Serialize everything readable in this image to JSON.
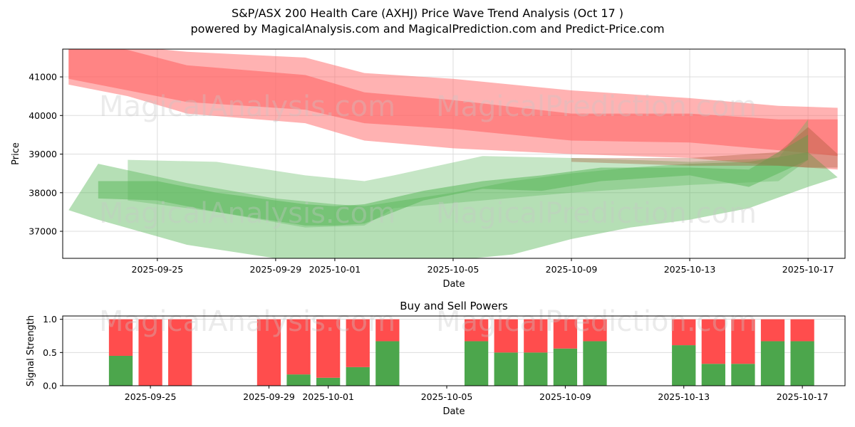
{
  "header": {
    "title": "S&P/ASX 200 Health Care (AXHJ) Price Wave Trend Analysis (Oct 17 )",
    "subtitle": "powered by MagicalAnalysis.com and MagicalPrediction.com and Predict-Price.com"
  },
  "watermarks": [
    "MagicalAnalysis.com",
    "MagicalPrediction.com"
  ],
  "colors": {
    "sell": "#ff4d4d",
    "buy": "#4ca64c",
    "sell_band": "#ff6666",
    "buy_band": "#5cb85c"
  },
  "chart_data": [
    {
      "type": "area",
      "title": "",
      "xlabel": "Date",
      "ylabel": "Price",
      "ylim": [
        36300,
        41720
      ],
      "xlim": [
        "2025-09-21.8",
        "2025-10-18.25"
      ],
      "grid": true,
      "yticks": [
        37000,
        38000,
        39000,
        40000,
        41000
      ],
      "xticks": [
        "2025-09-25",
        "2025-09-29",
        "2025-10-01",
        "2025-10-05",
        "2025-10-09",
        "2025-10-13",
        "2025-10-17"
      ],
      "series": [
        {
          "name": "sell-band-outer",
          "color": "red",
          "opacity": 0.5,
          "x": [
            "2025-09-22",
            "2025-09-24",
            "2025-09-26",
            "2025-09-30",
            "2025-10-02",
            "2025-10-05",
            "2025-10-09",
            "2025-10-13",
            "2025-10-16",
            "2025-10-18"
          ],
          "upper": [
            41900,
            41800,
            41650,
            41500,
            41100,
            40950,
            40650,
            40450,
            40250,
            40200
          ],
          "lower": [
            40800,
            40500,
            40050,
            39800,
            39350,
            39150,
            39000,
            38900,
            38700,
            38600
          ]
        },
        {
          "name": "sell-band-inner",
          "color": "red",
          "opacity": 0.6,
          "x": [
            "2025-09-22",
            "2025-09-24",
            "2025-09-26",
            "2025-09-30",
            "2025-10-02",
            "2025-10-05",
            "2025-10-09",
            "2025-10-13",
            "2025-10-16",
            "2025-10-18"
          ],
          "upper": [
            41900,
            41700,
            41300,
            41050,
            40600,
            40400,
            40050,
            40050,
            39900,
            39900
          ],
          "lower": [
            40950,
            40650,
            40350,
            40150,
            39800,
            39650,
            39350,
            39300,
            39100,
            38950
          ]
        },
        {
          "name": "buy-band-wide",
          "color": "green",
          "opacity": 0.45,
          "x": [
            "2025-09-22",
            "2025-09-23",
            "2025-09-26",
            "2025-09-29",
            "2025-10-01",
            "2025-10-02",
            "2025-10-05",
            "2025-10-07",
            "2025-10-09",
            "2025-10-11",
            "2025-10-13",
            "2025-10-15",
            "2025-10-17",
            "2025-10-18"
          ],
          "upper": [
            37550,
            38750,
            38250,
            37850,
            37700,
            37650,
            38000,
            38300,
            38500,
            38650,
            38750,
            38800,
            39050,
            38400
          ],
          "lower": [
            37550,
            37300,
            36650,
            36300,
            36200,
            36200,
            36250,
            36400,
            36800,
            37100,
            37300,
            37600,
            38150,
            38400
          ]
        },
        {
          "name": "buy-band-mid",
          "color": "green",
          "opacity": 0.35,
          "x": [
            "2025-09-24",
            "2025-09-27",
            "2025-09-30",
            "2025-10-02",
            "2025-10-03",
            "2025-10-06",
            "2025-10-09",
            "2025-10-13",
            "2025-10-16",
            "2025-10-17"
          ],
          "upper": [
            38850,
            38800,
            38450,
            38300,
            38450,
            38950,
            38900,
            38800,
            38900,
            39900
          ],
          "lower": [
            37800,
            37500,
            37100,
            37150,
            37600,
            37800,
            38000,
            38200,
            38300,
            38850
          ]
        },
        {
          "name": "buy-band-core",
          "color": "green",
          "opacity": 0.55,
          "x": [
            "2025-09-23",
            "2025-09-25",
            "2025-09-27",
            "2025-09-30",
            "2025-10-01",
            "2025-10-02",
            "2025-10-04",
            "2025-10-06",
            "2025-10-08",
            "2025-10-10",
            "2025-10-13",
            "2025-10-15",
            "2025-10-17"
          ],
          "upper": [
            38300,
            38300,
            38000,
            37700,
            37650,
            37700,
            38050,
            38300,
            38450,
            38650,
            38650,
            38600,
            39500
          ],
          "lower": [
            37850,
            37800,
            37500,
            37150,
            37150,
            37200,
            37800,
            38100,
            38050,
            38300,
            38450,
            38150,
            38850
          ]
        },
        {
          "name": "overlap-band",
          "color": "brown",
          "opacity": 0.35,
          "x": [
            "2025-10-09",
            "2025-10-13",
            "2025-10-16",
            "2025-10-17",
            "2025-10-18"
          ],
          "upper": [
            38900,
            38900,
            39050,
            39700,
            39000
          ],
          "lower": [
            38800,
            38700,
            38700,
            38650,
            38650
          ]
        }
      ]
    },
    {
      "type": "bar",
      "title": "Buy and Sell Powers",
      "xlabel": "Date",
      "ylabel": "Signal Strength",
      "ylim": [
        0,
        1.05
      ],
      "yticks": [
        0.0,
        0.5,
        1.0
      ],
      "ytick_labels": [
        "0.0",
        "0.5",
        "1.0"
      ],
      "xticks": [
        "2025-09-25",
        "2025-09-29",
        "2025-10-01",
        "2025-10-05",
        "2025-10-09",
        "2025-10-13",
        "2025-10-17"
      ],
      "grid": true,
      "stacked": true,
      "categories": [
        "2025-09-24",
        "2025-09-25",
        "2025-09-26",
        "2025-09-29",
        "2025-09-30",
        "2025-10-01",
        "2025-10-02",
        "2025-10-03",
        "2025-10-06",
        "2025-10-07",
        "2025-10-08",
        "2025-10-09",
        "2025-10-10",
        "2025-10-13",
        "2025-10-14",
        "2025-10-15",
        "2025-10-16",
        "2025-10-17"
      ],
      "series": [
        {
          "name": "Buy",
          "color": "green",
          "values": [
            0.45,
            0.0,
            0.0,
            0.0,
            0.17,
            0.12,
            0.28,
            0.67,
            0.67,
            0.5,
            0.5,
            0.56,
            0.67,
            0.61,
            0.33,
            0.33,
            0.67,
            0.67
          ]
        },
        {
          "name": "Sell",
          "color": "red",
          "values": [
            0.55,
            1.0,
            1.0,
            1.0,
            0.83,
            0.88,
            0.72,
            0.33,
            0.33,
            0.5,
            0.5,
            0.44,
            0.33,
            0.39,
            0.67,
            0.67,
            0.33,
            0.33
          ]
        }
      ]
    }
  ]
}
